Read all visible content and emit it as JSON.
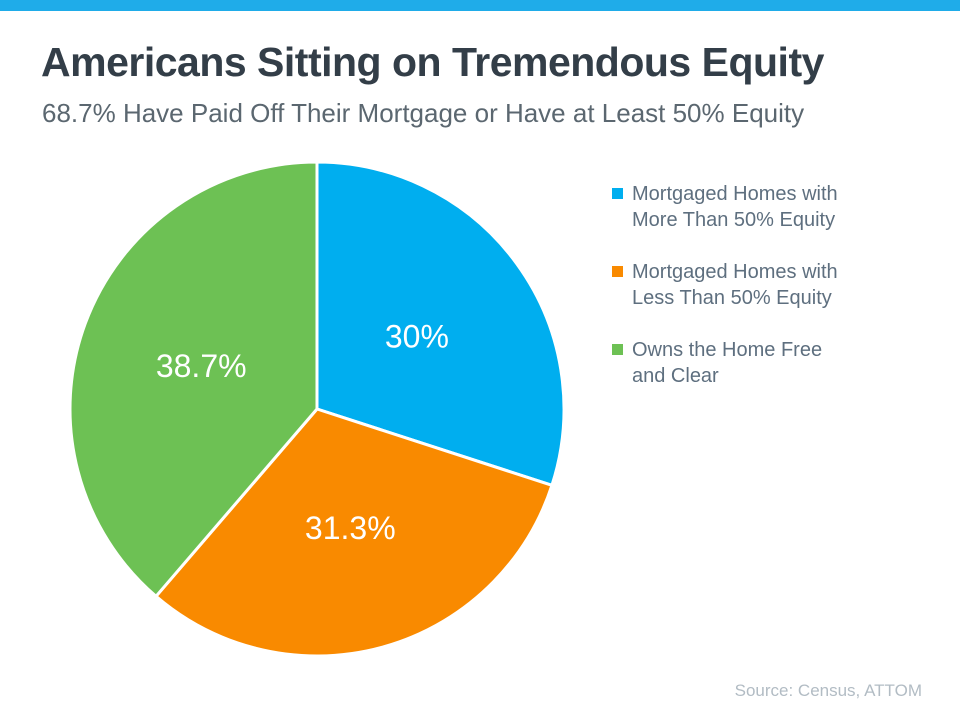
{
  "page": {
    "title": "Americans Sitting on Tremendous Equity",
    "subtitle": "68.7% Have Paid Off Their Mortgage or Have at Least 50% Equity",
    "source": "Source: Census, ATTOM",
    "accent_bar_color": "#1FACE9"
  },
  "chart_data": {
    "type": "pie",
    "categories": [
      "Mortgaged Homes with More Than 50% Equity",
      "Mortgaged Homes with Less Than 50% Equity",
      "Owns the Home Free and Clear"
    ],
    "values": [
      30,
      31.3,
      38.7
    ],
    "display_labels": [
      "30%",
      "31.3%",
      "38.7%"
    ],
    "colors": [
      "#00AEEF",
      "#F98A00",
      "#6DC154"
    ],
    "label_color": "#FFFFFF",
    "start_angle_deg": 0,
    "direction": "clockwise",
    "legend_position": "right",
    "legend": [
      {
        "label": "Mortgaged Homes with\nMore Than 50% Equity",
        "color": "#00AEEF"
      },
      {
        "label": "Mortgaged Homes with\nLess Than 50% Equity",
        "color": "#F98A00"
      },
      {
        "label": "Owns the Home Free\nand Clear",
        "color": "#6DC154"
      }
    ]
  }
}
